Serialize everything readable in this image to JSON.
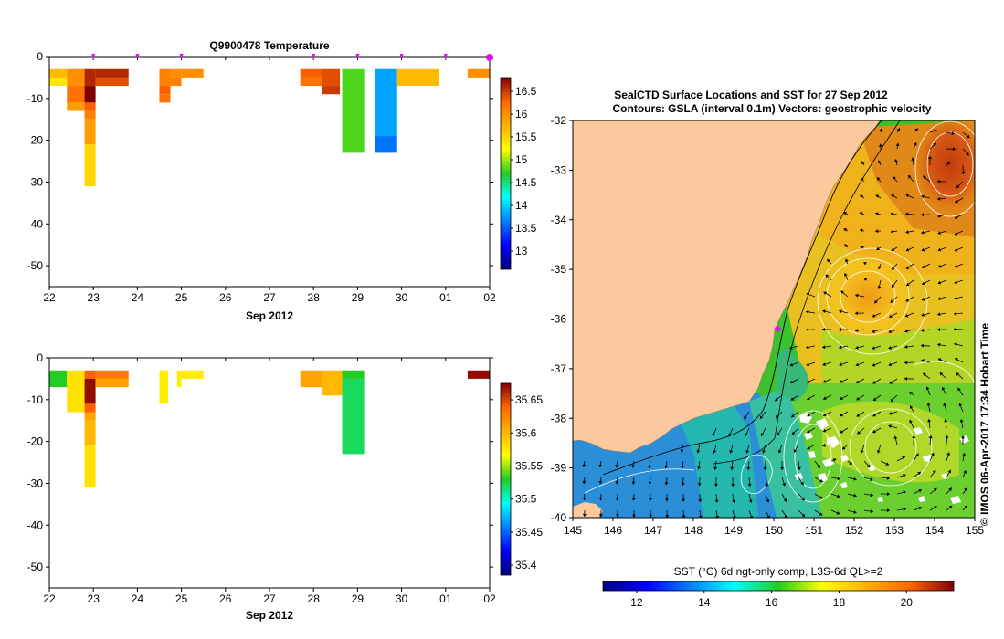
{
  "chart_data": [
    {
      "id": "temp",
      "type": "heatmap",
      "title": "Q9900478  Temperature",
      "xlabel": "Sep 2012",
      "x_ticks": [
        "22",
        "23",
        "24",
        "25",
        "26",
        "27",
        "28",
        "29",
        "30",
        "01",
        "02"
      ],
      "y_ticks": [
        "0",
        "-10",
        "-20",
        "-30",
        "-40",
        "-50"
      ],
      "ylim": [
        -55,
        0
      ],
      "colorbar": {
        "min": 12.6,
        "max": 16.8,
        "ticks": [
          "13",
          "13.5",
          "14",
          "14.5",
          "15",
          "15.5",
          "16",
          "16.5"
        ]
      },
      "profile_markers": [
        23,
        24,
        25,
        28,
        29,
        30,
        31,
        32
      ],
      "cells": [
        {
          "x0": 22.0,
          "x1": 22.4,
          "y0": -3,
          "y1": -5,
          "v": 15.7
        },
        {
          "x0": 22.0,
          "x1": 22.4,
          "y0": -5,
          "y1": -7,
          "v": 15.4
        },
        {
          "x0": 22.4,
          "x1": 22.8,
          "y0": -3,
          "y1": -7,
          "v": 16.0
        },
        {
          "x0": 22.4,
          "x1": 22.8,
          "y0": -7,
          "y1": -11,
          "v": 16.2
        },
        {
          "x0": 22.4,
          "x1": 22.8,
          "y0": -11,
          "y1": -13,
          "v": 15.9
        },
        {
          "x0": 22.8,
          "x1": 23.05,
          "y0": -3,
          "y1": -7,
          "v": 16.6
        },
        {
          "x0": 22.8,
          "x1": 23.05,
          "y0": -7,
          "y1": -11,
          "v": 16.8
        },
        {
          "x0": 22.8,
          "x1": 23.05,
          "y0": -11,
          "y1": -13,
          "v": 16.3
        },
        {
          "x0": 22.8,
          "x1": 23.05,
          "y0": -13,
          "y1": -15,
          "v": 16.1
        },
        {
          "x0": 22.8,
          "x1": 23.05,
          "y0": -15,
          "y1": -21,
          "v": 15.9
        },
        {
          "x0": 22.8,
          "x1": 23.05,
          "y0": -21,
          "y1": -31,
          "v": 15.5
        },
        {
          "x0": 23.05,
          "x1": 23.8,
          "y0": -3,
          "y1": -5,
          "v": 16.6
        },
        {
          "x0": 23.05,
          "x1": 23.8,
          "y0": -5,
          "y1": -7,
          "v": 16.4
        },
        {
          "x0": 24.5,
          "x1": 24.75,
          "y0": -3,
          "y1": -7,
          "v": 16.1
        },
        {
          "x0": 24.5,
          "x1": 24.75,
          "y0": -7,
          "y1": -9,
          "v": 16.3
        },
        {
          "x0": 24.5,
          "x1": 24.75,
          "y0": -9,
          "y1": -11,
          "v": 16.2
        },
        {
          "x0": 24.75,
          "x1": 25.0,
          "y0": -3,
          "y1": -5,
          "v": 16.0
        },
        {
          "x0": 24.75,
          "x1": 25.0,
          "y0": -5,
          "y1": -7,
          "v": 16.1
        },
        {
          "x0": 25.0,
          "x1": 25.5,
          "y0": -3,
          "y1": -5,
          "v": 16.0
        },
        {
          "x0": 27.7,
          "x1": 28.2,
          "y0": -3,
          "y1": -5,
          "v": 16.3
        },
        {
          "x0": 27.7,
          "x1": 28.2,
          "y0": -5,
          "y1": -7,
          "v": 16.2
        },
        {
          "x0": 28.2,
          "x1": 28.6,
          "y0": -3,
          "y1": -7,
          "v": 16.4
        },
        {
          "x0": 28.2,
          "x1": 28.6,
          "y0": -7,
          "y1": -9,
          "v": 16.5
        },
        {
          "x0": 28.65,
          "x1": 29.15,
          "y0": -3,
          "y1": -23,
          "v": 14.8
        },
        {
          "x0": 29.4,
          "x1": 29.9,
          "y0": -3,
          "y1": -19,
          "v": 13.8
        },
        {
          "x0": 29.4,
          "x1": 29.9,
          "y0": -19,
          "y1": -23,
          "v": 13.6
        },
        {
          "x0": 29.9,
          "x1": 30.85,
          "y0": -3,
          "y1": -7,
          "v": 15.7
        },
        {
          "x0": 31.5,
          "x1": 32.0,
          "y0": -3,
          "y1": -5,
          "v": 16.0
        }
      ]
    },
    {
      "id": "sal",
      "type": "heatmap",
      "title": "",
      "xlabel": "Sep 2012",
      "x_ticks": [
        "22",
        "23",
        "24",
        "25",
        "26",
        "27",
        "28",
        "29",
        "30",
        "01",
        "02"
      ],
      "y_ticks": [
        "0",
        "-10",
        "-20",
        "-30",
        "-40",
        "-50"
      ],
      "ylim": [
        -55,
        0
      ],
      "colorbar": {
        "min": 35.385,
        "max": 35.675,
        "ticks": [
          "35.4",
          "35.45",
          "35.5",
          "35.55",
          "35.6",
          "35.65"
        ]
      },
      "cells": [
        {
          "x0": 22.0,
          "x1": 22.4,
          "y0": -3,
          "y1": -7,
          "v": 35.53
        },
        {
          "x0": 22.4,
          "x1": 22.8,
          "y0": -3,
          "y1": -13,
          "v": 35.58
        },
        {
          "x0": 22.8,
          "x1": 23.05,
          "y0": -3,
          "y1": -5,
          "v": 35.64
        },
        {
          "x0": 22.8,
          "x1": 23.05,
          "y0": -5,
          "y1": -11,
          "v": 35.67
        },
        {
          "x0": 22.8,
          "x1": 23.05,
          "y0": -11,
          "y1": -13,
          "v": 35.64
        },
        {
          "x0": 22.8,
          "x1": 23.05,
          "y0": -13,
          "y1": -15,
          "v": 35.61
        },
        {
          "x0": 22.8,
          "x1": 23.05,
          "y0": -15,
          "y1": -21,
          "v": 35.6
        },
        {
          "x0": 22.8,
          "x1": 23.05,
          "y0": -21,
          "y1": -31,
          "v": 35.58
        },
        {
          "x0": 23.05,
          "x1": 23.8,
          "y0": -3,
          "y1": -5,
          "v": 35.63
        },
        {
          "x0": 23.05,
          "x1": 23.8,
          "y0": -5,
          "y1": -7,
          "v": 35.61
        },
        {
          "x0": 24.5,
          "x1": 24.7,
          "y0": -3,
          "y1": -11,
          "v": 35.575
        },
        {
          "x0": 24.9,
          "x1": 25.0,
          "y0": -3,
          "y1": -7,
          "v": 35.575
        },
        {
          "x0": 25.0,
          "x1": 25.5,
          "y0": -3,
          "y1": -5,
          "v": 35.575
        },
        {
          "x0": 27.7,
          "x1": 28.2,
          "y0": -3,
          "y1": -7,
          "v": 35.61
        },
        {
          "x0": 28.2,
          "x1": 28.65,
          "y0": -3,
          "y1": -9,
          "v": 35.6
        },
        {
          "x0": 28.65,
          "x1": 29.15,
          "y0": -3,
          "y1": -5,
          "v": 35.53
        },
        {
          "x0": 28.65,
          "x1": 29.15,
          "y0": -5,
          "y1": -23,
          "v": 35.52
        },
        {
          "x0": 31.5,
          "x1": 32.0,
          "y0": -3,
          "y1": -5,
          "v": 35.67
        }
      ]
    },
    {
      "id": "map",
      "type": "heatmap",
      "title_line1": "SealCTD Surface Locations and SST for 27 Sep 2012",
      "title_line2": "Contours: GSLA (interval 0.1m) Vectors: geostrophic velocity",
      "x_ticks": [
        "145",
        "146",
        "147",
        "148",
        "149",
        "150",
        "151",
        "152",
        "153",
        "154",
        "155"
      ],
      "y_ticks": [
        "-32",
        "-33",
        "-34",
        "-35",
        "-36",
        "-37",
        "-38",
        "-39",
        "-40"
      ],
      "xlim": [
        145,
        155
      ],
      "ylim": [
        -40,
        -32
      ],
      "colorbar_label": "SST (°C) 6d ngt-only comp, L3S-6d QL>=2",
      "colorbar": {
        "min": 11.0,
        "max": 21.4,
        "ticks": [
          "12",
          "14",
          "16",
          "18",
          "20"
        ]
      },
      "seal_location": {
        "lon": 150.1,
        "lat": -36.2
      },
      "credit": "© IMOS 06-Apr-2017 17:34 Hobart Time"
    }
  ]
}
